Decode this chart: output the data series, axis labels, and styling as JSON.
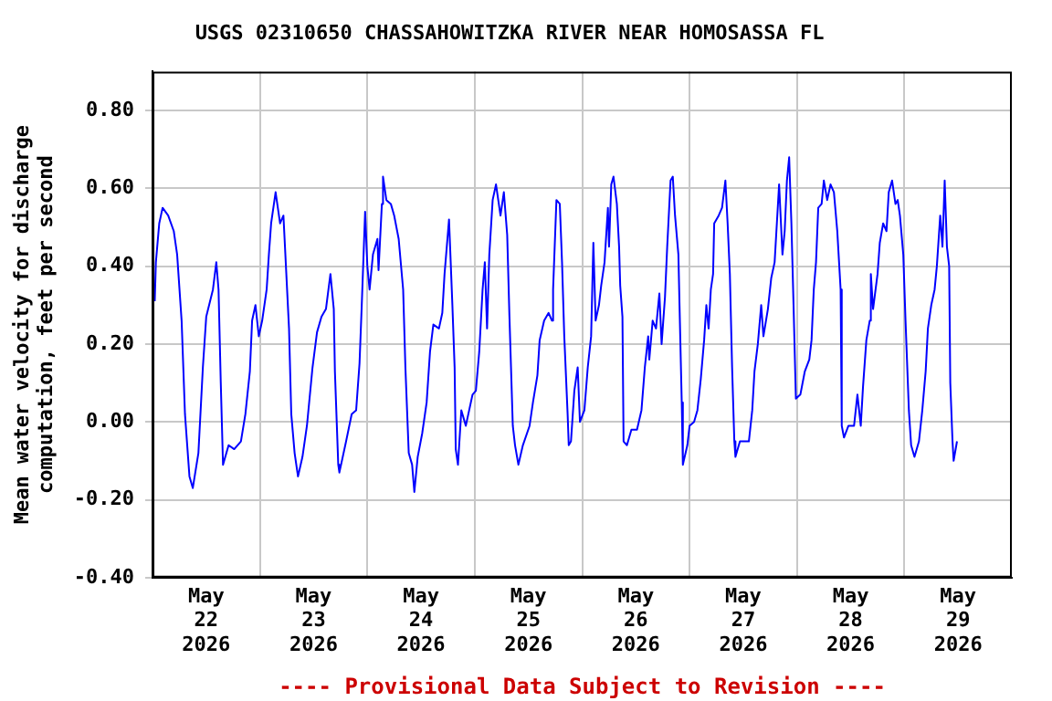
{
  "chart_data": {
    "type": "line",
    "title": "USGS 02310650 CHASSAHOWITZKA RIVER NEAR HOMOSASSA FL",
    "ylabel": "Mean water velocity for discharge computation, feet per second",
    "annotations": [
      "---- Provisional Data Subject to Revision ----"
    ],
    "xlim": [
      "2026-05-22",
      "2026-05-30"
    ],
    "xticks": [
      {
        "value": "2026-05-22T12:00",
        "label": "May 22 2026"
      },
      {
        "value": "2026-05-23",
        "label": null
      },
      {
        "value": "2026-05-23T12:00",
        "label": "May 23 2026"
      },
      {
        "value": "2026-05-24",
        "label": null
      },
      {
        "value": "2026-05-24T12:00",
        "label": "May 24 2026"
      },
      {
        "value": "2026-05-25",
        "label": null
      },
      {
        "value": "2026-05-25T12:00",
        "label": "May 25 2026"
      },
      {
        "value": "2026-05-26",
        "label": null
      },
      {
        "value": "2026-05-26T12:00",
        "label": "May 26 2026"
      },
      {
        "value": "2026-05-27",
        "label": null
      },
      {
        "value": "2026-05-27T12:00",
        "label": "May 27 2026"
      },
      {
        "value": "2026-05-28",
        "label": null
      },
      {
        "value": "2026-05-28T12:00",
        "label": "May 28 2026"
      },
      {
        "value": "2026-05-29",
        "label": null
      },
      {
        "value": "2026-05-29T12:00",
        "label": "May 29 2026"
      }
    ],
    "ylim": [
      -0.4,
      0.9
    ],
    "yticks": [
      {
        "value": -0.4,
        "label": "-0.40"
      },
      {
        "value": -0.2,
        "label": "-0.20"
      },
      {
        "value": 0,
        "label": "0.00"
      },
      {
        "value": 0.2,
        "label": "0.20"
      },
      {
        "value": 0.4,
        "label": "0.40"
      },
      {
        "value": 0.6,
        "label": "0.60"
      },
      {
        "value": 0.8,
        "label": "0.80"
      }
    ],
    "grid": true,
    "legend": false,
    "marker": "none",
    "line_style": "solid",
    "series": [
      {
        "color": "#0000ff",
        "x": [
          "2026-05-22T00:30",
          "2026-05-22T00:45",
          "2026-05-22T01:30",
          "2026-05-22T02:15",
          "2026-05-22T03:30",
          "2026-05-22T04:45",
          "2026-05-22T05:30",
          "2026-05-22T06:30",
          "2026-05-22T07:15",
          "2026-05-22T08:15",
          "2026-05-22T09:00",
          "2026-05-22T10:15",
          "2026-05-22T11:15",
          "2026-05-22T12:00",
          "2026-05-22T13:30",
          "2026-05-22T14:15",
          "2026-05-22T14:45",
          "2026-05-22T15:15",
          "2026-05-22T15:45",
          "2026-05-22T17:00",
          "2026-05-22T18:15",
          "2026-05-22T19:45",
          "2026-05-22T20:45",
          "2026-05-22T21:45",
          "2026-05-22T22:15",
          "2026-05-22T23:00",
          "2026-05-22T23:45",
          "2026-05-23T00:30",
          "2026-05-23T01:30",
          "2026-05-23T02:00",
          "2026-05-23T02:30",
          "2026-05-23T03:30",
          "2026-05-23T04:30",
          "2026-05-23T05:15",
          "2026-05-23T06:30",
          "2026-05-23T07:00",
          "2026-05-23T07:45",
          "2026-05-23T08:30",
          "2026-05-23T09:30",
          "2026-05-23T10:30",
          "2026-05-23T11:45",
          "2026-05-23T12:45",
          "2026-05-23T13:45",
          "2026-05-23T14:45",
          "2026-05-23T15:45",
          "2026-05-23T16:30",
          "2026-05-23T16:45",
          "2026-05-23T17:30",
          "2026-05-23T17:45",
          "2026-05-23T19:15",
          "2026-05-23T20:30",
          "2026-05-23T21:30",
          "2026-05-23T22:15",
          "2026-05-23T22:45",
          "2026-05-23T23:30",
          "2026-05-24T00:00",
          "2026-05-24T00:30",
          "2026-05-24T01:15",
          "2026-05-24T02:15",
          "2026-05-24T02:30",
          "2026-05-24T03:15",
          "2026-05-24T03:30",
          "2026-05-24T04:15",
          "2026-05-24T05:15",
          "2026-05-24T06:00",
          "2026-05-24T07:00",
          "2026-05-24T08:00",
          "2026-05-24T08:30",
          "2026-05-24T09:15",
          "2026-05-24T10:00",
          "2026-05-24T10:30",
          "2026-05-24T11:15",
          "2026-05-24T12:15",
          "2026-05-24T13:15",
          "2026-05-24T14:00",
          "2026-05-24T14:45",
          "2026-05-24T16:00",
          "2026-05-24T16:45",
          "2026-05-24T17:15",
          "2026-05-24T18:15",
          "2026-05-24T19:00",
          "2026-05-24T19:30",
          "2026-05-24T19:45",
          "2026-05-24T20:15",
          "2026-05-24T21:00",
          "2026-05-24T22:00",
          "2026-05-24T23:30",
          "2026-05-25T00:15",
          "2026-05-25T01:00",
          "2026-05-25T01:45",
          "2026-05-25T02:15",
          "2026-05-25T02:45",
          "2026-05-25T03:15",
          "2026-05-25T04:00",
          "2026-05-25T04:45",
          "2026-05-25T05:45",
          "2026-05-25T06:30",
          "2026-05-25T07:15",
          "2026-05-25T07:45",
          "2026-05-25T08:30",
          "2026-05-25T09:00",
          "2026-05-25T09:45",
          "2026-05-25T10:45",
          "2026-05-25T12:15",
          "2026-05-25T13:00",
          "2026-05-25T14:00",
          "2026-05-25T14:30",
          "2026-05-25T15:30",
          "2026-05-25T16:30",
          "2026-05-25T17:15",
          "2026-05-25T17:30",
          "2026-05-25T18:15",
          "2026-05-25T19:00",
          "2026-05-25T19:30",
          "2026-05-25T20:00",
          "2026-05-25T20:45",
          "2026-05-25T21:00",
          "2026-05-25T21:30",
          "2026-05-25T22:15",
          "2026-05-25T23:00",
          "2026-05-25T23:30",
          "2026-05-26T00:30",
          "2026-05-26T01:15",
          "2026-05-26T02:00",
          "2026-05-26T02:30",
          "2026-05-26T03:00",
          "2026-05-26T03:45",
          "2026-05-26T04:15",
          "2026-05-26T05:00",
          "2026-05-26T05:45",
          "2026-05-26T06:00",
          "2026-05-26T06:30",
          "2026-05-26T07:00",
          "2026-05-26T07:45",
          "2026-05-26T08:15",
          "2026-05-26T08:30",
          "2026-05-26T09:00",
          "2026-05-26T09:15",
          "2026-05-26T10:00",
          "2026-05-26T11:00",
          "2026-05-26T12:15",
          "2026-05-26T13:15",
          "2026-05-26T14:00",
          "2026-05-26T14:45",
          "2026-05-26T15:00",
          "2026-05-26T15:45",
          "2026-05-26T16:30",
          "2026-05-26T17:15",
          "2026-05-26T17:45",
          "2026-05-26T18:30",
          "2026-05-26T19:00",
          "2026-05-26T19:45",
          "2026-05-26T20:15",
          "2026-05-26T20:45",
          "2026-05-26T21:30",
          "2026-05-26T21:45",
          "2026-05-26T22:15",
          "2026-05-26T22:30",
          "2026-05-26T23:30",
          "2026-05-27T00:00",
          "2026-05-27T01:00",
          "2026-05-27T01:45",
          "2026-05-27T02:30",
          "2026-05-27T03:15",
          "2026-05-27T03:45",
          "2026-05-27T04:15",
          "2026-05-27T04:45",
          "2026-05-27T05:15",
          "2026-05-27T05:30",
          "2026-05-27T06:30",
          "2026-05-27T07:15",
          "2026-05-27T08:00",
          "2026-05-27T08:30",
          "2026-05-27T09:00",
          "2026-05-27T09:30",
          "2026-05-27T10:00",
          "2026-05-27T10:15",
          "2026-05-27T11:15",
          "2026-05-27T13:15",
          "2026-05-27T14:00",
          "2026-05-27T14:30",
          "2026-05-27T15:15",
          "2026-05-27T16:00",
          "2026-05-27T16:30",
          "2026-05-27T17:30",
          "2026-05-27T18:15",
          "2026-05-27T19:00",
          "2026-05-27T19:30",
          "2026-05-27T20:00",
          "2026-05-27T20:45",
          "2026-05-27T21:15",
          "2026-05-27T21:45",
          "2026-05-27T22:15",
          "2026-05-27T22:45",
          "2026-05-27T23:15",
          "2026-05-27T23:45",
          "2026-05-28T00:45",
          "2026-05-28T01:45",
          "2026-05-28T02:45",
          "2026-05-28T03:15",
          "2026-05-28T03:45",
          "2026-05-28T04:15",
          "2026-05-28T04:45",
          "2026-05-28T05:30",
          "2026-05-28T06:00",
          "2026-05-28T06:45",
          "2026-05-28T07:30",
          "2026-05-28T08:15",
          "2026-05-28T09:00",
          "2026-05-28T09:45",
          "2026-05-28T10:00",
          "2026-05-28T10:30",
          "2026-05-28T11:30",
          "2026-05-28T12:45",
          "2026-05-28T13:30",
          "2026-05-28T14:15",
          "2026-05-28T14:45",
          "2026-05-28T15:30",
          "2026-05-28T16:15",
          "2026-05-28T16:30",
          "2026-05-28T17:00",
          "2026-05-28T18:00",
          "2026-05-28T18:30",
          "2026-05-28T19:15",
          "2026-05-28T20:00",
          "2026-05-28T20:30",
          "2026-05-28T21:15",
          "2026-05-28T22:00",
          "2026-05-28T22:30",
          "2026-05-28T23:00",
          "2026-05-28T23:45",
          "2026-05-29T00:15",
          "2026-05-29T01:00",
          "2026-05-29T01:30",
          "2026-05-29T02:15",
          "2026-05-29T03:15",
          "2026-05-29T04:00",
          "2026-05-29T04:45",
          "2026-05-29T05:15",
          "2026-05-29T06:00",
          "2026-05-29T06:45",
          "2026-05-29T07:15",
          "2026-05-29T08:00",
          "2026-05-29T08:30",
          "2026-05-29T09:00",
          "2026-05-29T09:30",
          "2026-05-29T10:00",
          "2026-05-29T10:15",
          "2026-05-29T10:45",
          "2026-05-29T11:00",
          "2026-05-29T11:45"
        ],
        "values": [
          0.31,
          0.41,
          0.51,
          0.55,
          0.53,
          0.49,
          0.43,
          0.26,
          0.02,
          -0.14,
          -0.17,
          -0.08,
          0.14,
          0.27,
          0.34,
          0.41,
          0.34,
          0.1,
          -0.11,
          -0.06,
          -0.07,
          -0.05,
          0.02,
          0.13,
          0.26,
          0.3,
          0.22,
          0.26,
          0.34,
          0.43,
          0.51,
          0.59,
          0.51,
          0.53,
          0.24,
          0.02,
          -0.08,
          -0.14,
          -0.09,
          -0.01,
          0.14,
          0.23,
          0.27,
          0.29,
          0.38,
          0.29,
          0.13,
          -0.11,
          -0.13,
          -0.05,
          0.02,
          0.03,
          0.15,
          0.3,
          0.54,
          0.4,
          0.34,
          0.43,
          0.47,
          0.39,
          0.56,
          0.63,
          0.57,
          0.56,
          0.53,
          0.47,
          0.34,
          0.14,
          -0.08,
          -0.11,
          -0.18,
          -0.09,
          -0.03,
          0.05,
          0.18,
          0.25,
          0.24,
          0.28,
          0.38,
          0.52,
          0.3,
          0.14,
          -0.07,
          -0.11,
          0.03,
          -0.01,
          0.07,
          0.08,
          0.18,
          0.34,
          0.41,
          0.24,
          0.43,
          0.57,
          0.61,
          0.53,
          0.59,
          0.48,
          0.27,
          -0.01,
          -0.06,
          -0.11,
          -0.06,
          -0.01,
          0.05,
          0.12,
          0.21,
          0.26,
          0.28,
          0.26,
          0.34,
          0.57,
          0.56,
          0.41,
          0.22,
          0.02,
          -0.06,
          -0.05,
          0.08,
          0.14,
          0.0,
          0.03,
          0.14,
          0.22,
          0.46,
          0.26,
          0.3,
          0.35,
          0.41,
          0.55,
          0.45,
          0.61,
          0.63,
          0.56,
          0.45,
          0.35,
          0.27,
          -0.05,
          -0.06,
          -0.02,
          -0.02,
          0.03,
          0.14,
          0.22,
          0.16,
          0.26,
          0.24,
          0.33,
          0.2,
          0.32,
          0.45,
          0.62,
          0.63,
          0.53,
          0.43,
          0.3,
          0.05,
          -0.11,
          -0.06,
          -0.01,
          0.0,
          0.03,
          0.11,
          0.21,
          0.3,
          0.24,
          0.34,
          0.38,
          0.51,
          0.53,
          0.55,
          0.62,
          0.51,
          0.38,
          0.14,
          -0.05,
          -0.09,
          -0.05,
          -0.05,
          0.03,
          0.13,
          0.2,
          0.3,
          0.22,
          0.29,
          0.37,
          0.41,
          0.51,
          0.61,
          0.43,
          0.49,
          0.62,
          0.68,
          0.51,
          0.29,
          0.06,
          0.07,
          0.13,
          0.16,
          0.21,
          0.34,
          0.41,
          0.55,
          0.56,
          0.62,
          0.57,
          0.61,
          0.59,
          0.49,
          0.34,
          -0.01,
          -0.04,
          -0.01,
          -0.01,
          0.07,
          -0.01,
          0.09,
          0.21,
          0.26,
          0.38,
          0.29,
          0.38,
          0.46,
          0.51,
          0.49,
          0.59,
          0.62,
          0.56,
          0.57,
          0.53,
          0.43,
          0.26,
          0.03,
          -0.06,
          -0.09,
          -0.05,
          0.03,
          0.13,
          0.24,
          0.3,
          0.34,
          0.4,
          0.53,
          0.45,
          0.62,
          0.45,
          0.4,
          0.1,
          -0.05,
          -0.1,
          -0.05
        ]
      }
    ]
  }
}
